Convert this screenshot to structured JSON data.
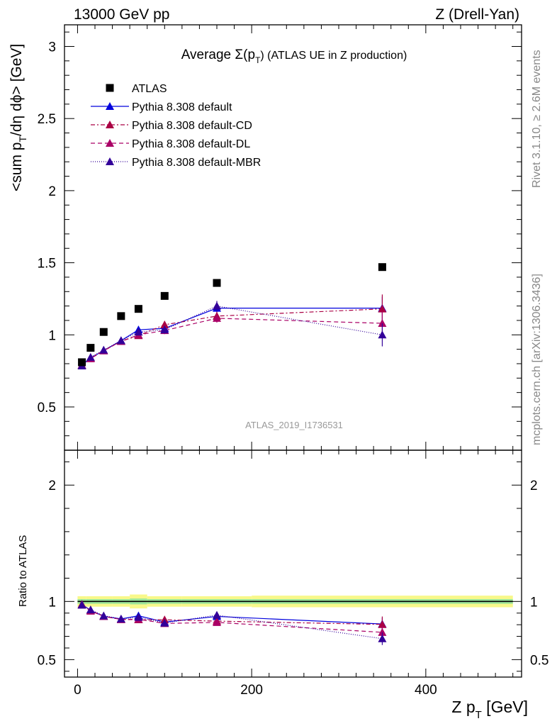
{
  "header": {
    "left": "13000 GeV pp",
    "right": "Z (Drell-Yan)"
  },
  "side": {
    "rivet": "Rivet 3.1.10, ≥ 2.6M events",
    "mcplots": "mcplots.cern.ch [arXiv:1306.3436]"
  },
  "chart_data": {
    "type": "scatter",
    "title_prefix": "Average",
    "title_sigma": "Σ(p",
    "title_sub": "T",
    "title_suffix": ") (ATLAS UE in Z production)",
    "analysis_label": "ATLAS_2019_I1736531",
    "ylabel_main": "<sum p",
    "ylabel_main_sub": "T",
    "ylabel_main_rest": "/dη dϕ> [GeV]",
    "ylabel_ratio": "Ratio to ATLAS",
    "xlabel": "Z p",
    "xlabel_sub": "T",
    "xlabel_rest": " [GeV]",
    "xlim": [
      -15,
      510
    ],
    "ylim_main": [
      0.2,
      3.15
    ],
    "ylim_ratio": [
      0.35,
      2.3
    ],
    "x_ticks": [
      0,
      200,
      400
    ],
    "y_ticks_main": [
      0.5,
      1,
      1.5,
      2,
      2.5,
      3
    ],
    "y_tick_labels_main": [
      "0.5",
      "1",
      "1.5",
      "2",
      "2.5",
      "3"
    ],
    "y_ticks_ratio": [
      0.5,
      1,
      2
    ],
    "y_tick_labels_ratio": [
      "0.5",
      "1",
      "2"
    ],
    "x": [
      5,
      15,
      30,
      50,
      70,
      100,
      160,
      350
    ],
    "data": {
      "name": "ATLAS",
      "values": [
        0.81,
        0.91,
        1.02,
        1.13,
        1.18,
        1.27,
        1.36,
        1.47
      ]
    },
    "band_edges": [
      0,
      10,
      20,
      40,
      60,
      80,
      120,
      200,
      500
    ],
    "band_inner": [
      0.02,
      0.02,
      0.02,
      0.02,
      0.025,
      0.02,
      0.02,
      0.02
    ],
    "band_outer": [
      0.045,
      0.045,
      0.045,
      0.045,
      0.06,
      0.045,
      0.045,
      0.05
    ],
    "series": [
      {
        "name": "Pythia 8.308 default",
        "color": "#0000dd",
        "dash": "",
        "values": [
          0.79,
          0.84,
          0.89,
          0.96,
          1.035,
          1.045,
          1.185,
          1.185
        ],
        "errors": [
          0.01,
          0.01,
          0.01,
          0.015,
          0.02,
          0.025,
          0.03,
          0.08
        ]
      },
      {
        "name": "Pythia 8.308 default-CD",
        "color": "#aa0044",
        "dash": "6,3,2,3",
        "values": [
          0.79,
          0.84,
          0.89,
          0.955,
          0.995,
          1.07,
          1.13,
          1.18
        ],
        "errors": [
          0.01,
          0.01,
          0.01,
          0.015,
          0.02,
          0.025,
          0.03,
          0.1
        ]
      },
      {
        "name": "Pythia 8.308 default-DL",
        "color": "#aa0066",
        "dash": "6,4",
        "values": [
          0.785,
          0.835,
          0.89,
          0.955,
          1.0,
          1.03,
          1.115,
          1.08
        ],
        "errors": [
          0.01,
          0.01,
          0.01,
          0.015,
          0.02,
          0.025,
          0.03,
          0.08
        ]
      },
      {
        "name": "Pythia 8.308 default-MBR",
        "color": "#330099",
        "dash": "1,2",
        "values": [
          0.785,
          0.845,
          0.895,
          0.96,
          1.02,
          1.035,
          1.2,
          1.0
        ],
        "errors": [
          0.01,
          0.01,
          0.01,
          0.015,
          0.02,
          0.025,
          0.035,
          0.08
        ]
      }
    ]
  }
}
